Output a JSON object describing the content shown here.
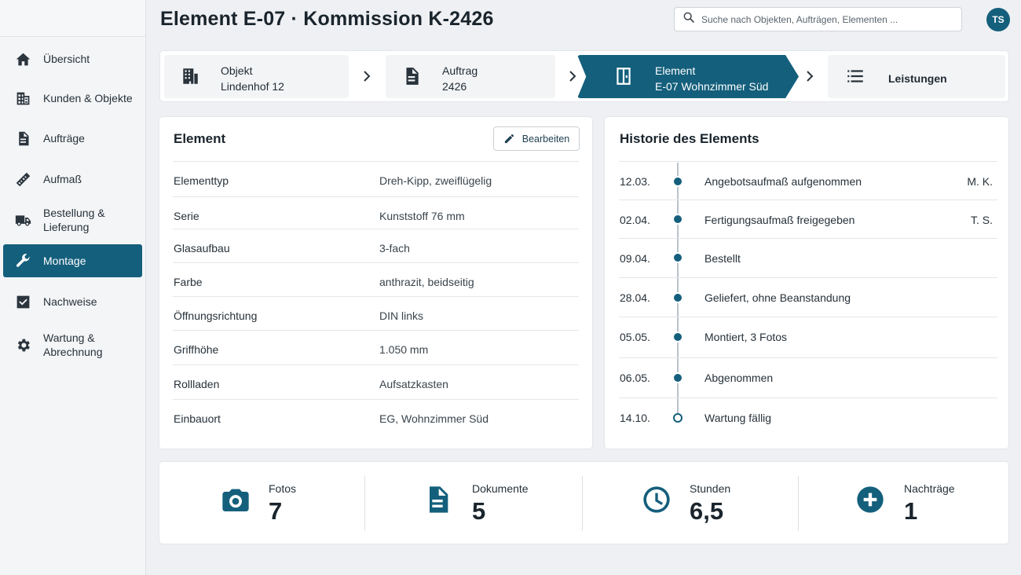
{
  "header": {
    "title": "Element E-07 · Kommission K-2426",
    "search_placeholder": "Suche nach Objekten, Aufträgen, Elementen ...",
    "user_initials": "TS"
  },
  "sidebar": {
    "items": [
      {
        "label": "Übersicht",
        "icon": "home-icon"
      },
      {
        "label": "Kunden & Objekte",
        "icon": "building-icon"
      },
      {
        "label": "Aufträge",
        "icon": "document-icon"
      },
      {
        "label": "Aufmaß",
        "icon": "ruler-icon"
      },
      {
        "label": "Bestellung &\nLieferung",
        "icon": "truck-icon"
      },
      {
        "label": "Montage",
        "icon": "wrench-icon",
        "active": true
      },
      {
        "label": "Nachweise",
        "icon": "checkbox-icon"
      },
      {
        "label": "Wartung &\nAbrechnung",
        "icon": "gear-icon"
      }
    ]
  },
  "breadcrumb": {
    "items": [
      {
        "line1": "Objekt",
        "line2": "Lindenhof 12",
        "icon": "building-icon"
      },
      {
        "line1": "Auftrag",
        "line2": "2426",
        "icon": "document-icon"
      },
      {
        "line1": "Element",
        "line2": "E-07 Wohnzimmer Süd",
        "icon": "window-icon",
        "active": true
      },
      {
        "line1": "Leistungen",
        "line2": "",
        "icon": "list-icon"
      }
    ]
  },
  "element_panel": {
    "title": "Element",
    "edit_label": "Bearbeiten",
    "properties": [
      {
        "key": "Elementtyp",
        "value": "Dreh-Kipp, zweiflügelig"
      },
      {
        "key": "Serie",
        "value": "Kunststoff 76 mm"
      },
      {
        "key": "Glasaufbau",
        "value": "3-fach"
      },
      {
        "key": "Farbe",
        "value": "anthrazit, beidseitig"
      },
      {
        "key": "Öffnungsrichtung",
        "value": "DIN links"
      },
      {
        "key": "Griffhöhe",
        "value": "1.050 mm"
      },
      {
        "key": "Rollladen",
        "value": "Aufsatzkasten"
      },
      {
        "key": "Einbauort",
        "value": "EG, Wohnzimmer Süd"
      }
    ]
  },
  "history_panel": {
    "title": "Historie des Elements",
    "events": [
      {
        "date": "12.03.",
        "event": "Angebotsaufmaß aufgenommen",
        "user": "M. K.",
        "done": true
      },
      {
        "date": "02.04.",
        "event": "Fertigungsaufmaß freigegeben",
        "user": "T. S.",
        "done": true
      },
      {
        "date": "09.04.",
        "event": "Bestellt",
        "user": "",
        "done": true
      },
      {
        "date": "28.04.",
        "event": "Geliefert, ohne Beanstandung",
        "user": "",
        "done": true
      },
      {
        "date": "05.05.",
        "event": "Montiert, 3 Fotos",
        "user": "",
        "done": true
      },
      {
        "date": "06.05.",
        "event": "Abgenommen",
        "user": "",
        "done": true
      },
      {
        "date": "14.10.",
        "event": "Wartung fällig",
        "user": "",
        "done": false
      }
    ]
  },
  "stats": [
    {
      "label": "Fotos",
      "value": "7",
      "icon": "camera-icon"
    },
    {
      "label": "Dokumente",
      "value": "5",
      "icon": "document-icon"
    },
    {
      "label": "Stunden",
      "value": "6,5",
      "icon": "clock-icon"
    },
    {
      "label": "Nachträge",
      "value": "1",
      "icon": "plus-circle-icon"
    }
  ],
  "colors": {
    "accent": "#145f7c",
    "background": "#eef0f3"
  }
}
